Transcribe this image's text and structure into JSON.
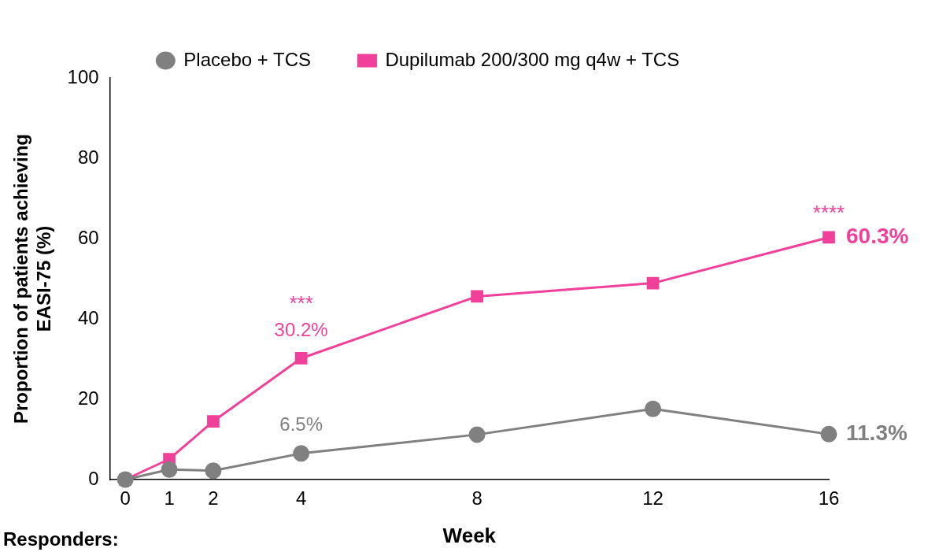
{
  "chart_data": {
    "type": "line",
    "xlabel": "Week",
    "ylabel": "Proportion of patients achieving\nEASI-75 (%)",
    "x": [
      0,
      1,
      2,
      4,
      8,
      12,
      16
    ],
    "series": [
      {
        "name": "Placebo + TCS",
        "color": "#808080",
        "marker": "circle",
        "values": [
          0,
          2.5,
          2.2,
          6.5,
          11.2,
          17.6,
          11.3
        ],
        "value_labels": [
          null,
          null,
          null,
          "6.5%",
          null,
          null,
          "11.3%"
        ]
      },
      {
        "name": "Dupilumab 200/300 mg q4w + TCS",
        "color": "#f0409a",
        "marker": "square",
        "values": [
          0,
          5.1,
          14.5,
          30.2,
          45.6,
          48.9,
          60.3
        ],
        "value_labels": [
          null,
          null,
          null,
          "30.2%",
          null,
          null,
          "60.3%"
        ]
      }
    ],
    "xlim": [
      -0.35,
      16
    ],
    "xticks": [
      0,
      1,
      2,
      4,
      8,
      12,
      16
    ],
    "ylim": [
      0,
      100
    ],
    "yticks": [
      0,
      20,
      40,
      60,
      80,
      100
    ],
    "grid": false,
    "legend": "top",
    "line_style": "solid",
    "annotations": [
      "***",
      "****",
      "Responders:"
    ]
  }
}
